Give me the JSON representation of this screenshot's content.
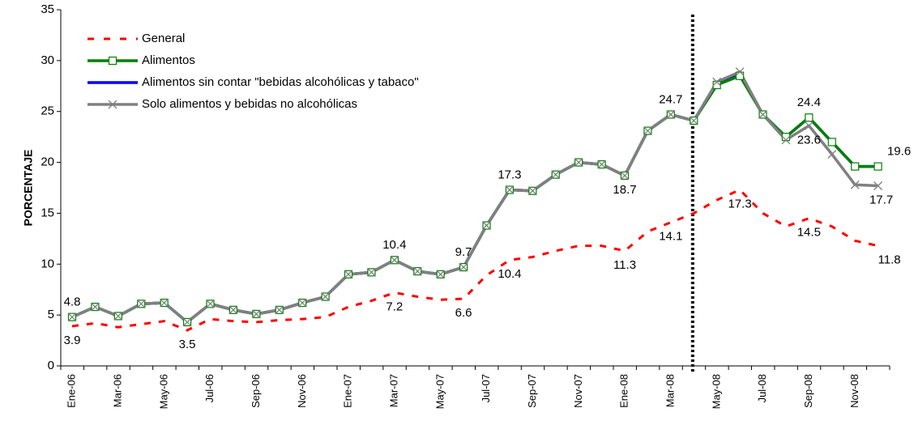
{
  "chart_data": {
    "type": "line",
    "y_label": "PORCENTAJE",
    "categories": [
      "Ene-06",
      null,
      "Mar-06",
      null,
      "May-06",
      null,
      "Jul-06",
      null,
      "Sep-06",
      null,
      "Nov-06",
      null,
      "Ene-07",
      null,
      "Mar-07",
      null,
      "May-07",
      null,
      "Jul-07",
      null,
      "Sep-07",
      null,
      "Nov-07",
      null,
      "Ene-08",
      null,
      "Mar-08",
      null,
      "May-08",
      null,
      "Jul-08",
      null,
      "Sep-08",
      null,
      "Nov-08",
      null
    ],
    "ylim": [
      0,
      35
    ],
    "yticks": [
      0,
      5,
      10,
      15,
      20,
      25,
      30,
      35
    ],
    "legend": "upper left",
    "series": [
      {
        "name": "General",
        "color": "#ff0000",
        "style": "dashed",
        "values": [
          3.9,
          4.2,
          3.8,
          4.1,
          4.4,
          3.5,
          4.6,
          4.4,
          4.3,
          4.5,
          4.6,
          4.8,
          5.8,
          6.4,
          7.2,
          6.8,
          6.5,
          6.6,
          8.9,
          10.4,
          10.7,
          11.3,
          11.8,
          11.8,
          11.3,
          13.2,
          14.1,
          15.0,
          16.3,
          17.3,
          15.0,
          13.7,
          14.5,
          13.7,
          12.3,
          11.8
        ],
        "value_labels": [
          "3.9",
          null,
          null,
          null,
          null,
          "3.5",
          null,
          null,
          null,
          null,
          null,
          null,
          null,
          null,
          "7.2",
          null,
          null,
          "6.6",
          null,
          "10.4",
          null,
          null,
          null,
          null,
          "11.3",
          null,
          "14.1",
          null,
          null,
          "17.3",
          null,
          null,
          "14.5",
          null,
          null,
          "11.8"
        ]
      },
      {
        "name": "Alimentos",
        "color": "#008000",
        "marker": "square",
        "values": [
          4.8,
          5.8,
          4.9,
          6.1,
          6.2,
          4.3,
          6.1,
          5.5,
          5.1,
          5.5,
          6.2,
          6.8,
          9.0,
          9.2,
          10.4,
          9.3,
          9.0,
          9.7,
          13.8,
          17.3,
          17.2,
          18.8,
          20.0,
          19.8,
          18.7,
          23.1,
          24.7,
          24.1,
          27.6,
          28.5,
          24.7,
          22.5,
          24.4,
          22.0,
          19.6,
          19.6
        ],
        "value_labels": [
          "4.8",
          null,
          null,
          null,
          null,
          null,
          null,
          null,
          null,
          null,
          null,
          null,
          null,
          null,
          "10.4",
          null,
          null,
          "9.7",
          null,
          "17.3",
          null,
          null,
          null,
          null,
          "18.7",
          null,
          "24.7",
          null,
          null,
          null,
          null,
          null,
          "24.4",
          null,
          null,
          "19.6"
        ]
      },
      {
        "name": "Alimentos sin contar \"bebidas alcohólicas y tabaco\"",
        "color": "#0000ff",
        "values": [
          4.8,
          5.8,
          4.9,
          6.1,
          6.2,
          4.3,
          6.1,
          5.5,
          5.1,
          5.5,
          6.2,
          6.8,
          9.0,
          9.2,
          10.4,
          9.3,
          9.0,
          9.7,
          13.8,
          17.3,
          17.2,
          18.8,
          20.0,
          19.8,
          18.7,
          23.1,
          24.7,
          24.1,
          27.6,
          28.7,
          24.7,
          22.5,
          24.4,
          22.0,
          19.6,
          19.6
        ]
      },
      {
        "name": "Solo alimentos y bebidas no alcohólicas",
        "color": "#808080",
        "marker": "x",
        "values": [
          4.8,
          5.8,
          4.9,
          6.1,
          6.2,
          4.3,
          6.1,
          5.5,
          5.1,
          5.5,
          6.2,
          6.8,
          9.0,
          9.2,
          10.4,
          9.3,
          9.0,
          9.7,
          13.8,
          17.3,
          17.2,
          18.8,
          20.0,
          19.8,
          18.7,
          23.1,
          24.7,
          24.1,
          27.9,
          28.9,
          24.7,
          22.2,
          23.6,
          20.8,
          17.8,
          17.7
        ],
        "value_labels": [
          null,
          null,
          null,
          null,
          null,
          null,
          null,
          null,
          null,
          null,
          null,
          null,
          null,
          null,
          null,
          null,
          null,
          null,
          null,
          null,
          null,
          null,
          null,
          null,
          null,
          null,
          null,
          null,
          null,
          null,
          null,
          null,
          "23.6",
          null,
          null,
          "17.7"
        ]
      }
    ]
  }
}
